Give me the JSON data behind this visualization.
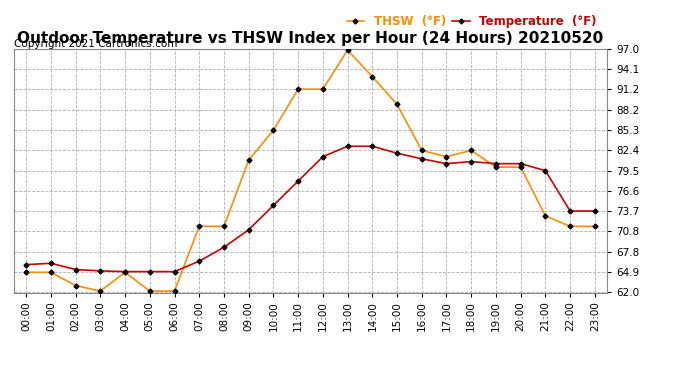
{
  "title": "Outdoor Temperature vs THSW Index per Hour (24 Hours) 20210520",
  "copyright": "Copyright 2021 Cartronics.com",
  "legend_thsw": "THSW  (°F)",
  "legend_temp": "Temperature  (°F)",
  "hours": [
    0,
    1,
    2,
    3,
    4,
    5,
    6,
    7,
    8,
    9,
    10,
    11,
    12,
    13,
    14,
    15,
    16,
    17,
    18,
    19,
    20,
    21,
    22,
    23
  ],
  "temperature": [
    66.0,
    66.2,
    65.3,
    65.1,
    65.0,
    65.0,
    65.0,
    66.5,
    68.5,
    71.0,
    74.5,
    78.0,
    81.5,
    83.0,
    83.0,
    82.0,
    81.2,
    80.5,
    80.8,
    80.5,
    80.5,
    79.5,
    73.7,
    73.7
  ],
  "thsw": [
    64.9,
    64.9,
    63.0,
    62.2,
    64.9,
    62.2,
    62.2,
    71.5,
    71.5,
    81.0,
    85.3,
    91.2,
    91.2,
    96.8,
    93.0,
    89.0,
    82.4,
    81.5,
    82.4,
    80.0,
    80.0,
    73.0,
    71.5,
    71.5
  ],
  "ylim": [
    62.0,
    97.0
  ],
  "yticks": [
    62.0,
    64.9,
    67.8,
    70.8,
    73.7,
    76.6,
    79.5,
    82.4,
    85.3,
    88.2,
    91.2,
    94.1,
    97.0
  ],
  "temp_color": "#cc0000",
  "thsw_color": "#ff8c00",
  "marker_color": "#000000",
  "grid_color": "#b0b0b0",
  "background_color": "#ffffff",
  "title_fontsize": 11,
  "copyright_fontsize": 7.5,
  "legend_fontsize": 8.5,
  "tick_fontsize": 7.5
}
